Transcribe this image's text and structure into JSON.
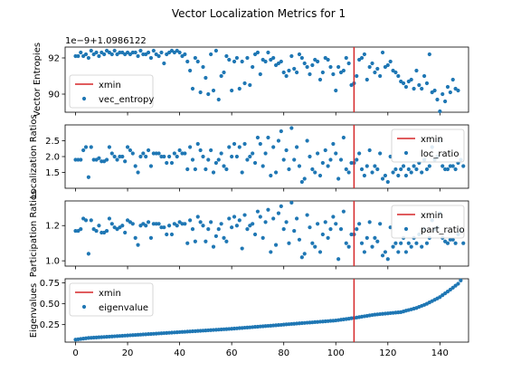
{
  "chart_data": [
    {
      "type": "scatter",
      "title": "Vector Localization Metrics for 1",
      "ylabel": "Vector Entropies",
      "offset_text": "1e−9+1.0986122",
      "ylim": [
        89.0,
        92.6
      ],
      "xlim": [
        -4,
        151
      ],
      "yticks": [
        {
          "v": 90,
          "label": "90"
        },
        {
          "v": 92,
          "label": "92"
        }
      ],
      "legend_position": "lower left",
      "legend": [
        "xmin",
        "vec_entropy"
      ],
      "xmin": 107,
      "series": [
        {
          "name": "vec_entropy",
          "values": [
            92.1,
            92.1,
            92.3,
            92.1,
            92.2,
            92.0,
            92.4,
            92.2,
            92.3,
            92.1,
            92.3,
            92.2,
            92.4,
            92.3,
            92.2,
            92.4,
            92.2,
            92.3,
            92.3,
            92.2,
            92.3,
            92.2,
            92.3,
            92.3,
            92.1,
            92.4,
            92.2,
            92.2,
            92.3,
            92.0,
            92.4,
            92.2,
            92.1,
            92.3,
            91.7,
            92.2,
            92.3,
            92.4,
            92.3,
            92.4,
            92.3,
            92.1,
            92.2,
            91.8,
            91.3,
            90.3,
            92.0,
            91.8,
            90.1,
            91.5,
            90.9,
            90.0,
            92.2,
            90.2,
            92.4,
            89.7,
            91.0,
            91.2,
            92.1,
            91.9,
            90.2,
            91.8,
            92.0,
            90.3,
            91.8,
            90.6,
            92.0,
            90.5,
            91.5,
            92.2,
            92.3,
            91.1,
            91.9,
            91.8,
            92.3,
            91.9,
            92.0,
            91.6,
            91.7,
            91.8,
            91.2,
            91.0,
            91.3,
            92.1,
            91.4,
            91.2,
            92.2,
            92.0,
            91.7,
            91.5,
            91.1,
            91.6,
            91.9,
            91.8,
            90.8,
            91.2,
            92.0,
            91.9,
            91.5,
            91.1,
            90.2,
            91.5,
            91.2,
            91.3,
            92.0,
            91.7,
            90.5,
            90.6,
            91.0,
            91.9,
            92.0,
            92.2,
            90.8,
            91.5,
            91.7,
            91.2,
            91.4,
            91.0,
            92.3,
            91.5,
            91.6,
            91.8,
            91.3,
            91.2,
            91.0,
            90.7,
            90.6,
            90.4,
            90.7,
            90.8,
            90.3,
            91.3,
            90.5,
            90.3,
            91.0,
            90.6,
            92.2,
            90.1,
            90.2,
            89.7,
            89.0,
            90.0,
            89.6,
            90.4,
            90.1,
            90.8,
            90.3,
            90.2
          ]
        }
      ]
    },
    {
      "type": "scatter",
      "ylabel": "Localization Ratios",
      "ylim": [
        1.0,
        3.0
      ],
      "xlim": [
        -4,
        151
      ],
      "yticks": [
        {
          "v": 1.5,
          "label": "1.5"
        },
        {
          "v": 2.0,
          "label": "2.0"
        },
        {
          "v": 2.5,
          "label": "2.5"
        }
      ],
      "legend_position": "upper right",
      "legend": [
        "xmin",
        "loc_ratio"
      ],
      "xmin": 107,
      "series": [
        {
          "name": "loc_ratio",
          "values": [
            1.9,
            1.9,
            1.9,
            2.2,
            2.3,
            1.35,
            2.3,
            1.9,
            1.9,
            1.95,
            1.85,
            1.85,
            1.9,
            2.3,
            2.1,
            2.0,
            1.9,
            2.0,
            2.0,
            1.85,
            2.3,
            2.2,
            2.1,
            1.7,
            1.5,
            2.0,
            2.1,
            2.0,
            2.2,
            1.7,
            2.1,
            2.1,
            2.1,
            2.0,
            2.0,
            1.8,
            2.0,
            1.8,
            2.1,
            2.0,
            2.2,
            2.1,
            2.1,
            1.6,
            2.3,
            1.9,
            1.6,
            2.4,
            2.2,
            2.0,
            1.6,
            1.9,
            2.2,
            1.5,
            1.8,
            1.9,
            2.1,
            1.7,
            1.6,
            2.3,
            2.0,
            2.4,
            2.0,
            2.3,
            1.5,
            2.4,
            1.9,
            2.0,
            2.1,
            1.8,
            2.6,
            2.4,
            1.7,
            2.1,
            2.6,
            1.4,
            2.3,
            1.5,
            2.5,
            2.8,
            1.9,
            2.2,
            1.6,
            2.9,
            1.9,
            2.3,
            1.7,
            1.2,
            1.3,
            2.5,
            2.0,
            1.6,
            1.5,
            2.1,
            1.4,
            1.8,
            2.2,
            1.7,
            1.9,
            2.4,
            2.1,
            1.3,
            1.9,
            2.6,
            1.6,
            1.5,
            1.8,
            1.8,
            1.9,
            2.1,
            1.6,
            1.4,
            1.7,
            2.2,
            1.5,
            1.7,
            1.6,
            2.1,
            1.3,
            1.4,
            1.2,
            2.0,
            1.5,
            1.6,
            1.4,
            1.6,
            1.7,
            1.4,
            1.6,
            1.5,
            1.7,
            1.6,
            1.8,
            1.5,
            1.9,
            1.6,
            1.7,
            2.3,
            1.9,
            2.0,
            2.5,
            1.7,
            1.6,
            1.6,
            1.7,
            1.7,
            1.6,
            1.8,
            1.9,
            1.7
          ]
        }
      ]
    },
    {
      "type": "scatter",
      "ylabel": "Participation Ratios",
      "ylim": [
        0.97,
        1.34
      ],
      "xlim": [
        -4,
        151
      ],
      "yticks": [
        {
          "v": 1.0,
          "label": "1.0"
        },
        {
          "v": 1.2,
          "label": "1.2"
        }
      ],
      "legend_position": "upper right",
      "legend": [
        "xmin",
        "part_ratio"
      ],
      "xmin": 107,
      "series": [
        {
          "name": "part_ratio",
          "values": [
            1.17,
            1.17,
            1.18,
            1.24,
            1.23,
            1.04,
            1.23,
            1.18,
            1.17,
            1.2,
            1.16,
            1.16,
            1.17,
            1.24,
            1.21,
            1.19,
            1.18,
            1.19,
            1.2,
            1.16,
            1.23,
            1.22,
            1.21,
            1.13,
            1.09,
            1.2,
            1.21,
            1.2,
            1.22,
            1.13,
            1.21,
            1.21,
            1.21,
            1.19,
            1.19,
            1.15,
            1.2,
            1.15,
            1.21,
            1.2,
            1.22,
            1.21,
            1.21,
            1.1,
            1.23,
            1.18,
            1.11,
            1.25,
            1.22,
            1.2,
            1.11,
            1.18,
            1.22,
            1.08,
            1.14,
            1.18,
            1.21,
            1.13,
            1.11,
            1.24,
            1.19,
            1.25,
            1.2,
            1.23,
            1.07,
            1.26,
            1.18,
            1.2,
            1.21,
            1.15,
            1.28,
            1.25,
            1.13,
            1.22,
            1.29,
            1.05,
            1.24,
            1.09,
            1.27,
            1.31,
            1.18,
            1.22,
            1.1,
            1.33,
            1.17,
            1.24,
            1.12,
            1.02,
            1.04,
            1.26,
            1.19,
            1.1,
            1.08,
            1.21,
            1.05,
            1.15,
            1.22,
            1.13,
            1.18,
            1.25,
            1.21,
            1.01,
            1.18,
            1.28,
            1.1,
            1.08,
            1.15,
            1.15,
            1.18,
            1.21,
            1.1,
            1.05,
            1.13,
            1.22,
            1.08,
            1.13,
            1.11,
            1.21,
            1.03,
            1.05,
            1.01,
            1.19,
            1.08,
            1.1,
            1.05,
            1.1,
            1.13,
            1.05,
            1.1,
            1.08,
            1.13,
            1.1,
            1.15,
            1.08,
            1.18,
            1.1,
            1.13,
            1.23,
            1.18,
            1.19,
            1.27,
            1.13,
            1.11,
            1.1,
            1.12,
            1.12,
            1.1,
            1.15,
            1.17,
            1.1
          ]
        }
      ]
    },
    {
      "type": "scatter",
      "ylabel": "Eigenvalues",
      "ylim": [
        0.04,
        0.8
      ],
      "xlim": [
        -4,
        151
      ],
      "yticks": [
        {
          "v": 0.25,
          "label": "0.25"
        },
        {
          "v": 0.5,
          "label": "0.50"
        },
        {
          "v": 0.75,
          "label": "0.75"
        }
      ],
      "xticks": [
        0,
        20,
        40,
        60,
        80,
        100,
        120,
        140
      ],
      "legend_position": "upper left",
      "legend": [
        "xmin",
        "eigenvalue"
      ],
      "xmin": 107,
      "series": [
        {
          "name": "eigenvalue",
          "values": "generated"
        }
      ],
      "curve_anchors": [
        [
          0,
          0.07
        ],
        [
          5,
          0.09
        ],
        [
          20,
          0.12
        ],
        [
          40,
          0.16
        ],
        [
          60,
          0.2
        ],
        [
          80,
          0.25
        ],
        [
          100,
          0.3
        ],
        [
          107,
          0.33
        ],
        [
          115,
          0.37
        ],
        [
          125,
          0.4
        ],
        [
          131,
          0.45
        ],
        [
          135,
          0.5
        ],
        [
          140,
          0.58
        ],
        [
          144,
          0.67
        ],
        [
          147,
          0.74
        ],
        [
          148,
          0.78
        ]
      ]
    }
  ],
  "colors": {
    "xmin_line": "#d62728",
    "points": "#1f77b4"
  }
}
